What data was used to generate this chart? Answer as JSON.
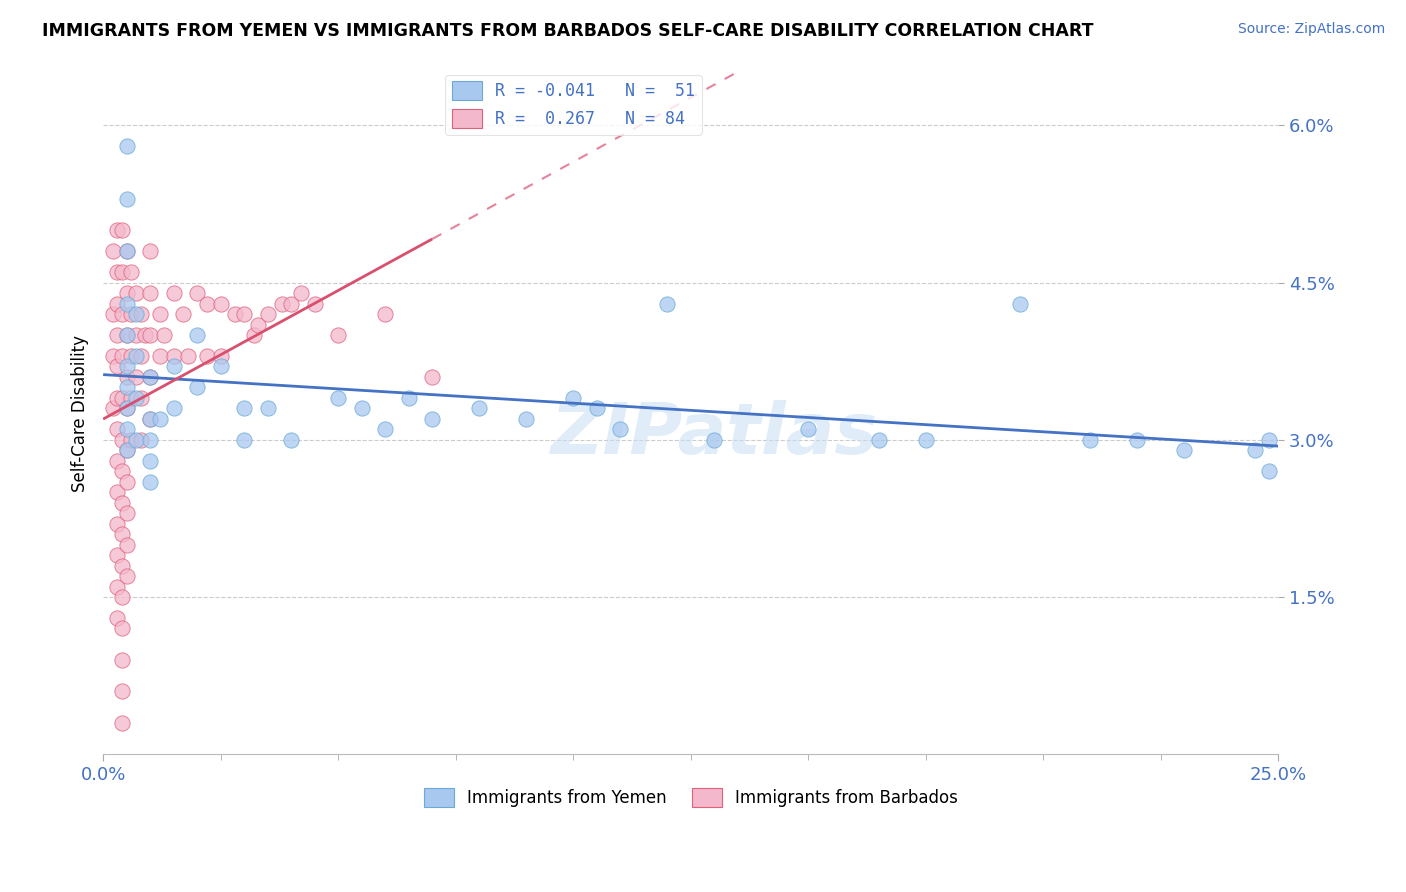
{
  "title": "IMMIGRANTS FROM YEMEN VS IMMIGRANTS FROM BARBADOS SELF-CARE DISABILITY CORRELATION CHART",
  "source": "Source: ZipAtlas.com",
  "ylabel": "Self-Care Disability",
  "xlim": [
    0.0,
    0.25
  ],
  "ylim": [
    0.0,
    0.065
  ],
  "yticks": [
    0.015,
    0.03,
    0.045,
    0.06
  ],
  "ytick_labels": [
    "1.5%",
    "3.0%",
    "4.5%",
    "6.0%"
  ],
  "legend_R1": "-0.041",
  "legend_N1": "51",
  "legend_R2": "0.267",
  "legend_N2": "84",
  "color_yemen": "#a8c8f0",
  "color_barbados": "#f4b8cc",
  "edge_yemen": "#6aaad4",
  "edge_barbados": "#e0607a",
  "trendline_yemen_color": "#4472c4",
  "trendline_barbados_color": "#d94f6e",
  "watermark": "ZIPatlas",
  "yemen_x": [
    0.005,
    0.005,
    0.005,
    0.005,
    0.005,
    0.005,
    0.005,
    0.005,
    0.005,
    0.005,
    0.007,
    0.007,
    0.007,
    0.007,
    0.01,
    0.01,
    0.01,
    0.01,
    0.01,
    0.012,
    0.015,
    0.015,
    0.02,
    0.02,
    0.025,
    0.03,
    0.03,
    0.035,
    0.04,
    0.05,
    0.055,
    0.06,
    0.065,
    0.07,
    0.08,
    0.09,
    0.1,
    0.105,
    0.11,
    0.12,
    0.13,
    0.15,
    0.165,
    0.175,
    0.195,
    0.21,
    0.22,
    0.23,
    0.245,
    0.248,
    0.248
  ],
  "yemen_y": [
    0.058,
    0.053,
    0.048,
    0.043,
    0.04,
    0.037,
    0.035,
    0.033,
    0.031,
    0.029,
    0.042,
    0.038,
    0.034,
    0.03,
    0.036,
    0.032,
    0.03,
    0.028,
    0.026,
    0.032,
    0.037,
    0.033,
    0.04,
    0.035,
    0.037,
    0.033,
    0.03,
    0.033,
    0.03,
    0.034,
    0.033,
    0.031,
    0.034,
    0.032,
    0.033,
    0.032,
    0.034,
    0.033,
    0.031,
    0.043,
    0.03,
    0.031,
    0.03,
    0.03,
    0.043,
    0.03,
    0.03,
    0.029,
    0.029,
    0.027,
    0.03
  ],
  "barbados_x": [
    0.002,
    0.002,
    0.002,
    0.002,
    0.003,
    0.003,
    0.003,
    0.003,
    0.003,
    0.003,
    0.003,
    0.003,
    0.003,
    0.003,
    0.003,
    0.003,
    0.003,
    0.004,
    0.004,
    0.004,
    0.004,
    0.004,
    0.004,
    0.004,
    0.004,
    0.004,
    0.004,
    0.004,
    0.004,
    0.004,
    0.004,
    0.004,
    0.005,
    0.005,
    0.005,
    0.005,
    0.005,
    0.005,
    0.005,
    0.005,
    0.005,
    0.005,
    0.006,
    0.006,
    0.006,
    0.006,
    0.006,
    0.007,
    0.007,
    0.007,
    0.008,
    0.008,
    0.008,
    0.008,
    0.009,
    0.01,
    0.01,
    0.01,
    0.01,
    0.01,
    0.012,
    0.012,
    0.013,
    0.015,
    0.015,
    0.017,
    0.018,
    0.02,
    0.022,
    0.022,
    0.025,
    0.025,
    0.028,
    0.03,
    0.032,
    0.033,
    0.035,
    0.038,
    0.04,
    0.042,
    0.045,
    0.05,
    0.06,
    0.07
  ],
  "barbados_y": [
    0.048,
    0.042,
    0.038,
    0.033,
    0.05,
    0.046,
    0.043,
    0.04,
    0.037,
    0.034,
    0.031,
    0.028,
    0.025,
    0.022,
    0.019,
    0.016,
    0.013,
    0.05,
    0.046,
    0.042,
    0.038,
    0.034,
    0.03,
    0.027,
    0.024,
    0.021,
    0.018,
    0.015,
    0.012,
    0.009,
    0.006,
    0.003,
    0.048,
    0.044,
    0.04,
    0.036,
    0.033,
    0.029,
    0.026,
    0.023,
    0.02,
    0.017,
    0.046,
    0.042,
    0.038,
    0.034,
    0.03,
    0.044,
    0.04,
    0.036,
    0.042,
    0.038,
    0.034,
    0.03,
    0.04,
    0.048,
    0.044,
    0.04,
    0.036,
    0.032,
    0.042,
    0.038,
    0.04,
    0.044,
    0.038,
    0.042,
    0.038,
    0.044,
    0.043,
    0.038,
    0.043,
    0.038,
    0.042,
    0.042,
    0.04,
    0.041,
    0.042,
    0.043,
    0.043,
    0.044,
    0.043,
    0.04,
    0.042,
    0.036
  ]
}
